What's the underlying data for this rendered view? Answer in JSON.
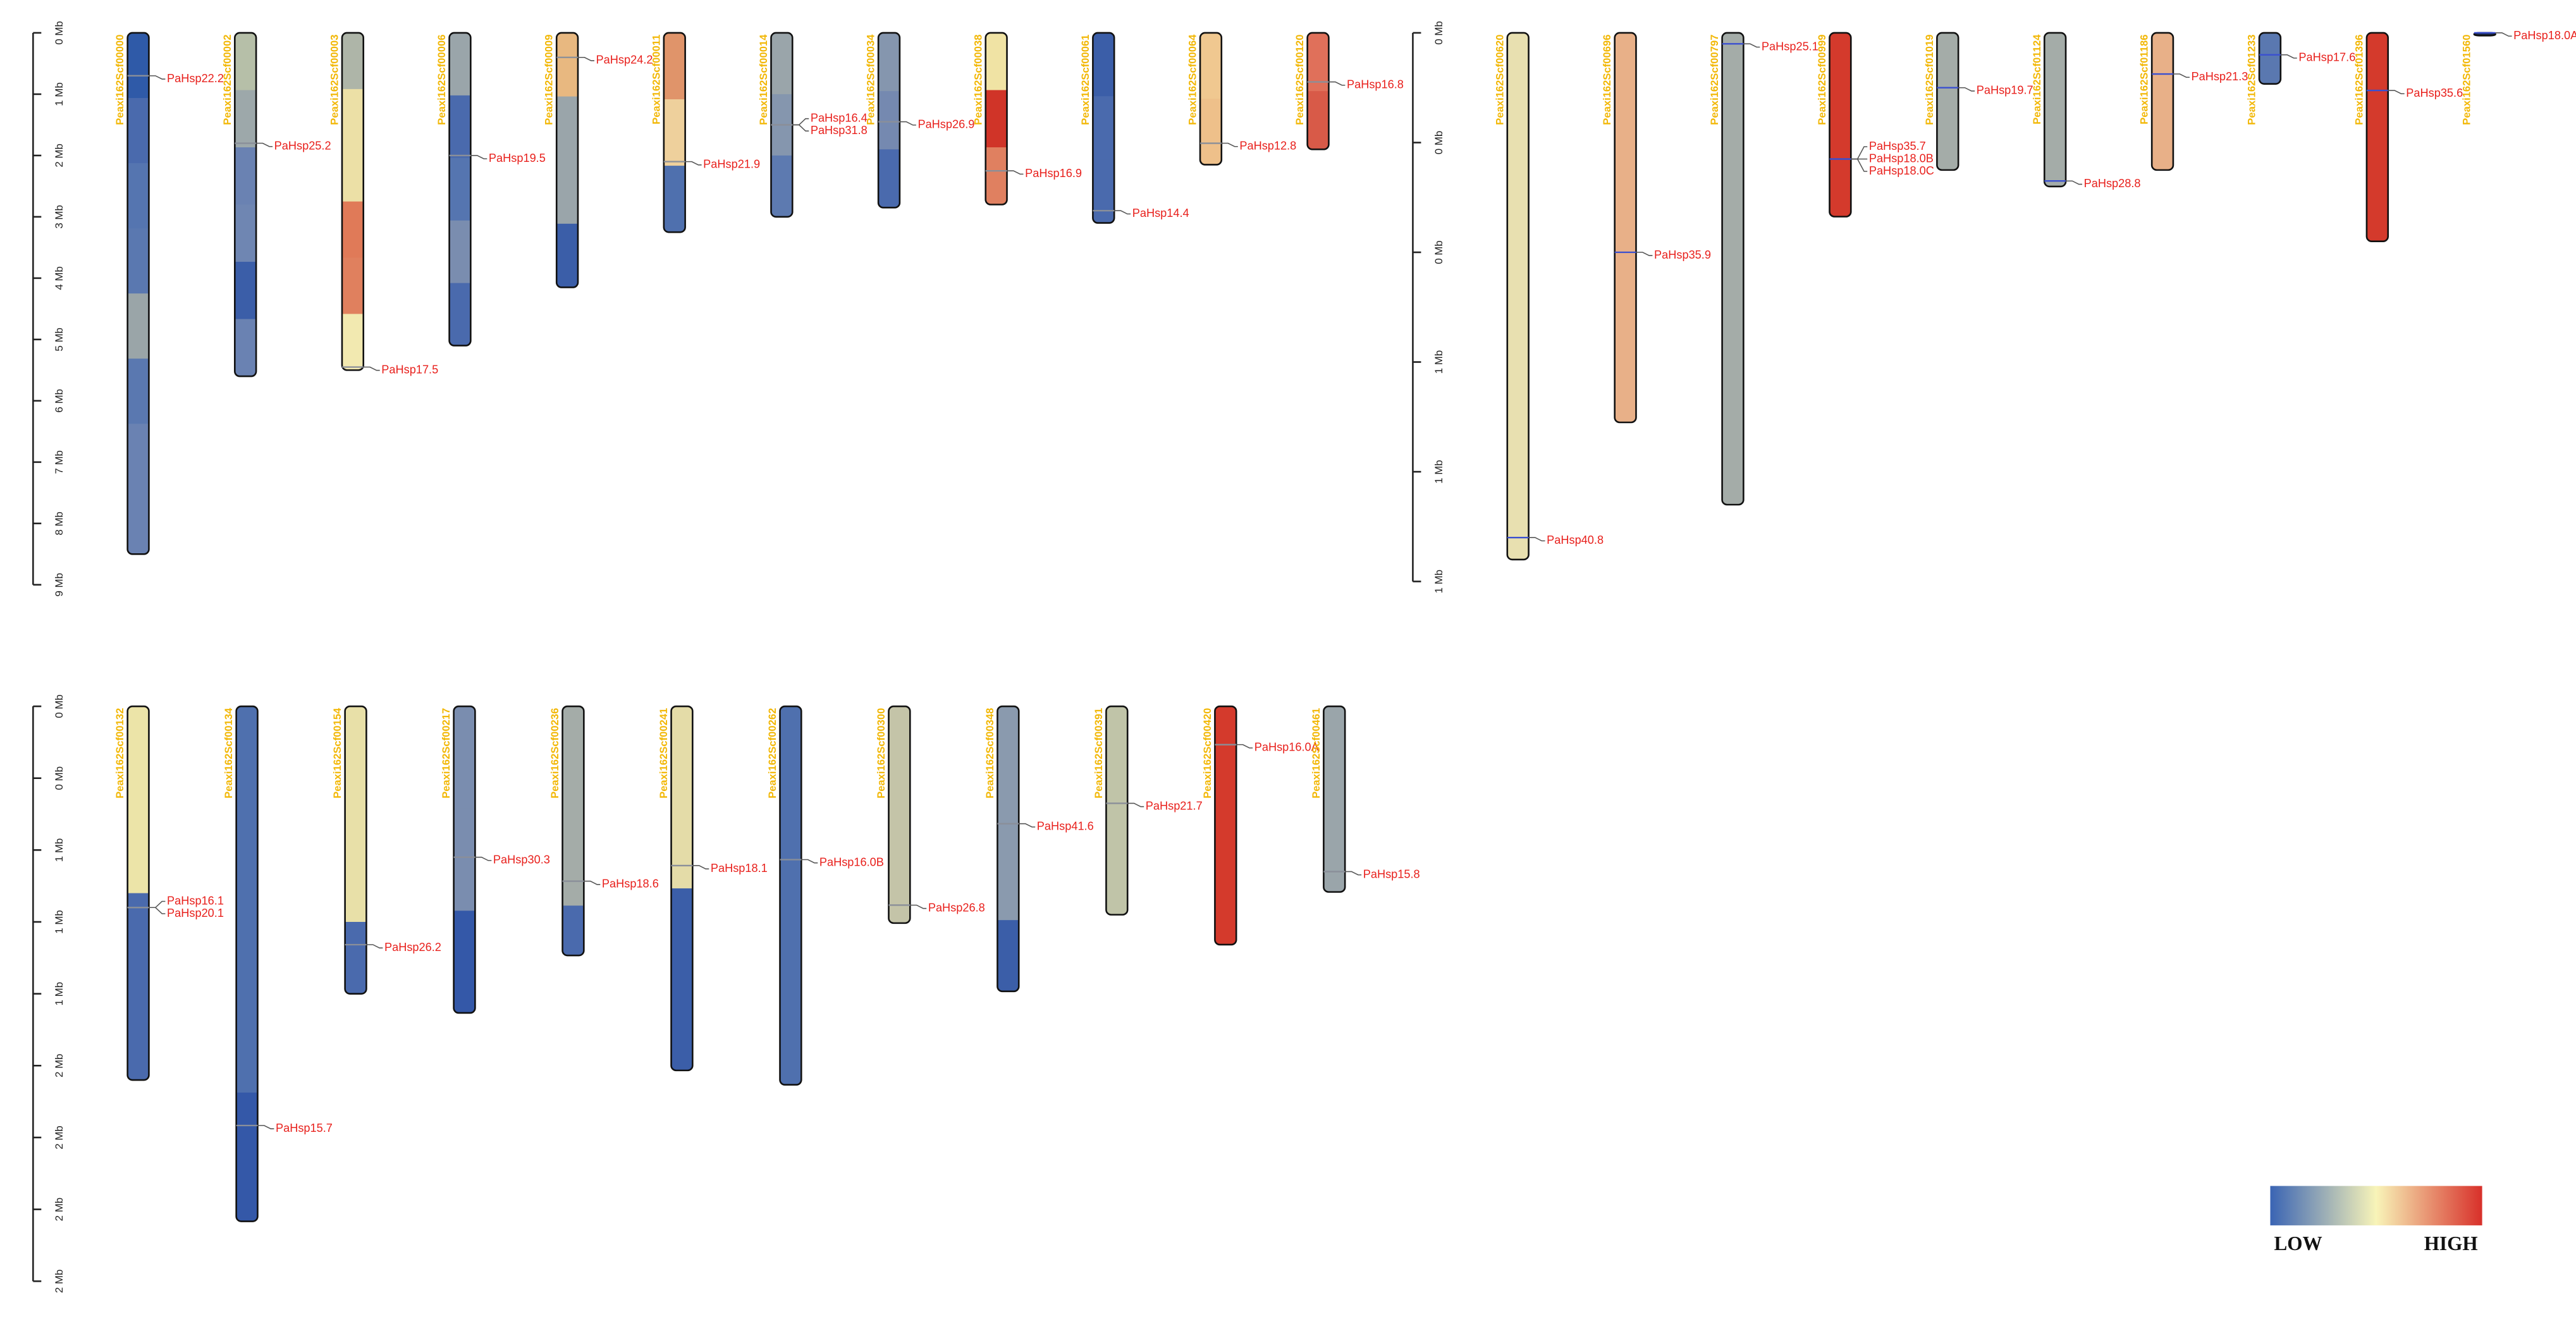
{
  "panels": [
    {
      "ylim": [
        0,
        9
      ],
      "yticks": [
        {
          "value": 0,
          "label": "0 Mb"
        },
        {
          "value": 1,
          "label": "1 Mb"
        },
        {
          "value": 2,
          "label": "2 Mb"
        },
        {
          "value": 3,
          "label": "3 Mb"
        },
        {
          "value": 4,
          "label": "4 Mb"
        },
        {
          "value": 5,
          "label": "5 Mb"
        },
        {
          "value": 6,
          "label": "6 Mb"
        },
        {
          "value": 7,
          "label": "7 Mb"
        },
        {
          "value": 8,
          "label": "8 Mb"
        },
        {
          "value": 9,
          "label": "9 Mb"
        }
      ],
      "marker_color": "#8a8f99",
      "chromosomes": [
        {
          "name": "Peaxi162Scf00000",
          "length": 8.5,
          "bands": [
            "#2f5aa8",
            "#4a6aad",
            "#5575b0",
            "#5a78b0",
            "#9aa5a8",
            "#5a78b0",
            "#6a82b2",
            "#6a82b2"
          ],
          "genes": [
            {
              "label": "PaHsp22.2",
              "pos": 0.7
            }
          ]
        },
        {
          "name": "Peaxi162Scf00002",
          "length": 5.6,
          "bands": [
            "#b6bfa8",
            "#9da8aa",
            "#6a82b2",
            "#6f86b2",
            "#3b5ea8",
            "#6a82b2"
          ],
          "genes": [
            {
              "label": "PaHsp25.2",
              "pos": 1.8
            }
          ]
        },
        {
          "name": "Peaxi162Scf00003",
          "length": 5.5,
          "bands": [
            "#aeb5a8",
            "#ece0a6",
            "#ece0a6",
            "#e07a58",
            "#e0805e",
            "#f2e9b0"
          ],
          "genes": [
            {
              "label": "PaHsp17.5",
              "pos": 5.45
            }
          ]
        },
        {
          "name": "Peaxi162Scf00006",
          "length": 5.1,
          "bands": [
            "#9aa5aa",
            "#4a6aad",
            "#5575b0",
            "#7a8daf",
            "#4a6aad"
          ],
          "genes": [
            {
              "label": "PaHsp19.5",
              "pos": 2.0
            }
          ]
        },
        {
          "name": "Peaxi162Scf00009",
          "length": 4.15,
          "bands": [
            "#e8b880",
            "#9aa5aa",
            "#9aa5aa",
            "#3b5ea8"
          ],
          "genes": [
            {
              "label": "PaHsp24.2",
              "pos": 0.4
            }
          ]
        },
        {
          "name": "Peaxi162Scf00011",
          "length": 3.25,
          "bands": [
            "#e0946a",
            "#eed09c",
            "#4f70ae"
          ],
          "genes": [
            {
              "label": "PaHsp21.9",
              "pos": 2.1
            }
          ]
        },
        {
          "name": "Peaxi162Scf00014",
          "length": 3.0,
          "bands": [
            "#9aa5aa",
            "#8596ae",
            "#5d7ab0"
          ],
          "genes": [
            {
              "label": "PaHsp16.4",
              "pos": 1.5
            },
            {
              "label": "PaHsp31.8",
              "pos": 1.5
            }
          ]
        },
        {
          "name": "Peaxi162Scf00034",
          "length": 2.85,
          "bands": [
            "#8596ae",
            "#7589b0",
            "#4a6aad"
          ],
          "genes": [
            {
              "label": "PaHsp26.9",
              "pos": 1.45
            }
          ]
        },
        {
          "name": "Peaxi162Scf00038",
          "length": 2.8,
          "bands": [
            "#f0e3a4",
            "#d03428",
            "#e08060"
          ],
          "genes": [
            {
              "label": "PaHsp16.9",
              "pos": 2.25
            }
          ]
        },
        {
          "name": "Peaxi162Scf00061",
          "length": 3.1,
          "bands": [
            "#3b5ea8",
            "#4a6aad",
            "#4a6aad"
          ],
          "genes": [
            {
              "label": "PaHsp14.4",
              "pos": 2.9
            }
          ]
        },
        {
          "name": "Peaxi162Scf00064",
          "length": 2.15,
          "bands": [
            "#f0c890",
            "#eec08a"
          ],
          "genes": [
            {
              "label": "PaHsp12.8",
              "pos": 1.8
            }
          ]
        },
        {
          "name": "Peaxi162Scf00120",
          "length": 1.9,
          "bands": [
            "#e0705a",
            "#d85a48"
          ],
          "genes": [
            {
              "label": "PaHsp16.8",
              "pos": 0.8
            }
          ]
        }
      ]
    },
    {
      "ylim": [
        0,
        1
      ],
      "yticks": [
        {
          "value": 0,
          "label": "0 Mb"
        },
        {
          "value": 0.2,
          "label": "0 Mb"
        },
        {
          "value": 0.4,
          "label": "0 Mb"
        },
        {
          "value": 0.6,
          "label": "1 Mb"
        },
        {
          "value": 0.8,
          "label": "1 Mb"
        },
        {
          "value": 1,
          "label": "1 Mb"
        }
      ],
      "marker_color": "#3a4fd0",
      "chromosomes": [
        {
          "name": "Peaxi162Scf00620",
          "length": 0.96,
          "bands": [
            "#e8e0b0"
          ],
          "genes": [
            {
              "label": "PaHsp40.8",
              "pos": 0.92
            }
          ]
        },
        {
          "name": "Peaxi162Scf00696",
          "length": 0.71,
          "bands": [
            "#e8b088"
          ],
          "genes": [
            {
              "label": "PaHsp35.9",
              "pos": 0.4
            }
          ]
        },
        {
          "name": "Peaxi162Scf00797",
          "length": 0.86,
          "bands": [
            "#a4aca8"
          ],
          "genes": [
            {
              "label": "PaHsp25.1",
              "pos": 0.02
            }
          ]
        },
        {
          "name": "Peaxi162Scf00999",
          "length": 0.335,
          "bands": [
            "#d43a2c"
          ],
          "genes": [
            {
              "label": "PaHsp35.7",
              "pos": 0.23
            },
            {
              "label": "PaHsp18.0B",
              "pos": 0.23
            },
            {
              "label": "PaHsp18.0C",
              "pos": 0.23
            }
          ]
        },
        {
          "name": "Peaxi162Scf01019",
          "length": 0.25,
          "bands": [
            "#a4aca8"
          ],
          "genes": [
            {
              "label": "PaHsp19.7",
              "pos": 0.1
            }
          ]
        },
        {
          "name": "Peaxi162Scf01124",
          "length": 0.28,
          "bands": [
            "#a4aca8"
          ],
          "genes": [
            {
              "label": "PaHsp28.8",
              "pos": 0.27
            }
          ]
        },
        {
          "name": "Peaxi162Scf01186",
          "length": 0.25,
          "bands": [
            "#e8b088"
          ],
          "genes": [
            {
              "label": "PaHsp21.3",
              "pos": 0.075
            }
          ]
        },
        {
          "name": "Peaxi162Scf01233",
          "length": 0.093,
          "bands": [
            "#5a78b0"
          ],
          "genes": [
            {
              "label": "PaHsp17.6",
              "pos": 0.04
            }
          ]
        },
        {
          "name": "Peaxi162Scf01396",
          "length": 0.38,
          "bands": [
            "#d43a2c"
          ],
          "genes": [
            {
              "label": "PaHsp35.6",
              "pos": 0.105
            }
          ]
        },
        {
          "name": "Peaxi162Scf01560",
          "length": 0.005,
          "bands": [
            "#1a2a50"
          ],
          "genes": [
            {
              "label": "PaHsp18.0A",
              "pos": 0.0
            }
          ]
        }
      ]
    },
    {
      "ylim": [
        0,
        2.4
      ],
      "yticks": [
        {
          "value": 0,
          "label": "0 Mb"
        },
        {
          "value": 0.3,
          "label": "0 Mb"
        },
        {
          "value": 0.6,
          "label": "1 Mb"
        },
        {
          "value": 0.9,
          "label": "1 Mb"
        },
        {
          "value": 1.2,
          "label": "1 Mb"
        },
        {
          "value": 1.5,
          "label": "2 Mb"
        },
        {
          "value": 1.8,
          "label": "2 Mb"
        },
        {
          "value": 2.1,
          "label": "2 Mb"
        },
        {
          "value": 2.4,
          "label": "2 Mb"
        }
      ],
      "marker_color": "#8a8f99",
      "chromosomes": [
        {
          "name": "Peaxi162Scf00132",
          "length": 1.56,
          "bands": [
            "#ece4a8",
            "#4a6aad"
          ],
          "genes": [
            {
              "label": "PaHsp16.1",
              "pos": 0.84
            },
            {
              "label": "PaHsp20.1",
              "pos": 0.84
            }
          ]
        },
        {
          "name": "Peaxi162Scf00134",
          "length": 2.15,
          "bands": [
            "#4f70ae",
            "#4f70ae",
            "#4f70ae",
            "#3458a8"
          ],
          "genes": [
            {
              "label": "PaHsp15.7",
              "pos": 1.75
            }
          ]
        },
        {
          "name": "Peaxi162Scf00154",
          "length": 1.2,
          "bands": [
            "#e8e0a8",
            "#e8e0a8",
            "#e8e0a8",
            "#4a6aad"
          ],
          "genes": [
            {
              "label": "PaHsp26.2",
              "pos": 0.995
            }
          ]
        },
        {
          "name": "Peaxi162Scf00217",
          "length": 1.28,
          "bands": [
            "#7a8daf",
            "#7a8daf",
            "#3458a8"
          ],
          "genes": [
            {
              "label": "PaHsp30.3",
              "pos": 0.63
            }
          ]
        },
        {
          "name": "Peaxi162Scf00236",
          "length": 1.04,
          "bands": [
            "#a4aca8",
            "#a4aca8",
            "#a4aca8",
            "#a4aca8",
            "#4a6aad"
          ],
          "genes": [
            {
              "label": "PaHsp18.6",
              "pos": 0.73
            }
          ]
        },
        {
          "name": "Peaxi162Scf00241",
          "length": 1.52,
          "bands": [
            "#e4dca8",
            "#3b5ea8"
          ],
          "genes": [
            {
              "label": "PaHsp18.1",
              "pos": 0.665
            }
          ]
        },
        {
          "name": "Peaxi162Scf00262",
          "length": 1.58,
          "bands": [
            "#4f70ae"
          ],
          "genes": [
            {
              "label": "PaHsp16.0B",
              "pos": 0.64
            }
          ]
        },
        {
          "name": "Peaxi162Scf00300",
          "length": 0.905,
          "bands": [
            "#c4c4a8"
          ],
          "genes": [
            {
              "label": "PaHsp26.8",
              "pos": 0.83
            }
          ]
        },
        {
          "name": "Peaxi162Scf00348",
          "length": 1.19,
          "bands": [
            "#8a9aae",
            "#8a9aae",
            "#8a9aae",
            "#3b5ea8"
          ],
          "genes": [
            {
              "label": "PaHsp41.6",
              "pos": 0.49
            }
          ]
        },
        {
          "name": "Peaxi162Scf00391",
          "length": 0.87,
          "bands": [
            "#c0c4a8"
          ],
          "genes": [
            {
              "label": "PaHsp21.7",
              "pos": 0.405
            }
          ]
        },
        {
          "name": "Peaxi162Scf00420",
          "length": 0.995,
          "bands": [
            "#d43a2c"
          ],
          "genes": [
            {
              "label": "PaHsp16.0A",
              "pos": 0.16
            }
          ]
        },
        {
          "name": "Peaxi162Scf00461",
          "length": 0.775,
          "bands": [
            "#9aa5aa"
          ],
          "genes": [
            {
              "label": "PaHsp15.8",
              "pos": 0.69
            }
          ]
        }
      ]
    }
  ],
  "legend": {
    "low": "LOW",
    "high": "HIGH",
    "colors": [
      "#3a64b4",
      "#f8f4b8",
      "#d8302a"
    ]
  }
}
